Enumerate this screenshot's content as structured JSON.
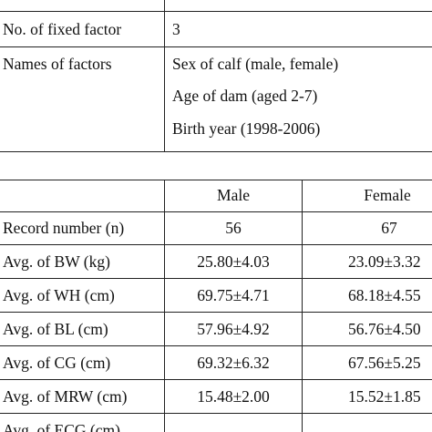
{
  "table1": {
    "row_partial": {
      "label": "",
      "value": ""
    },
    "row_fixed": {
      "label": "No. of fixed factor",
      "value": "3"
    },
    "row_names": {
      "label": "Names of factors",
      "values": [
        "Sex of calf  (male, female)",
        "Age of dam (aged 2-7)",
        "Birth year (1998-2006)"
      ]
    }
  },
  "table2": {
    "headers": [
      "",
      "Male",
      "Female"
    ],
    "rows": [
      {
        "label": "Record number (n)",
        "male": "56",
        "female": "67"
      },
      {
        "label": "Avg. of BW (kg)",
        "male": "25.80±4.03",
        "female": "23.09±3.32"
      },
      {
        "label": "Avg. of WH (cm)",
        "male": "69.75±4.71",
        "female": "68.18±4.55"
      },
      {
        "label": "Avg. of BL (cm)",
        "male": "57.96±4.92",
        "female": "56.76±4.50"
      },
      {
        "label": "Avg. of CG (cm)",
        "male": "69.32±6.32",
        "female": "67.56±5.25"
      },
      {
        "label": "Avg. of MRW (cm)",
        "male": "15.48±2.00",
        "female": "15.52±1.85"
      },
      {
        "label": "Avg. of ECG (cm)",
        "male": "",
        "female": ""
      }
    ]
  }
}
